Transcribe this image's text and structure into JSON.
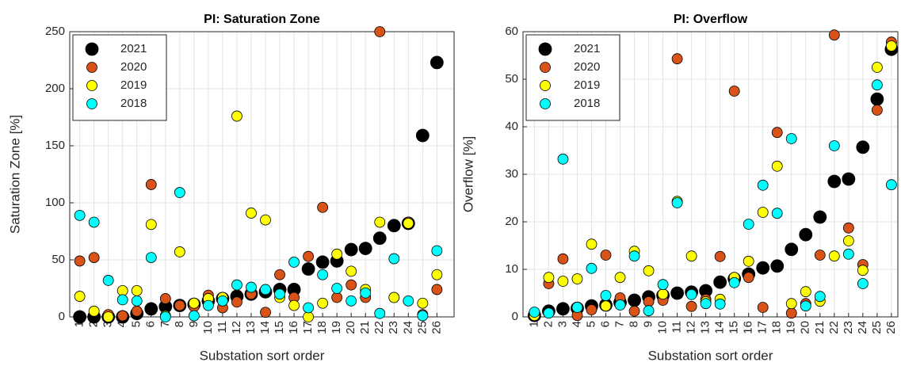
{
  "chart_data": [
    {
      "type": "scatter",
      "title": "PI: Saturation Zone",
      "x_label": "Substation sort order",
      "y_label": "Saturation Zone [%]",
      "x": [
        1,
        2,
        3,
        4,
        5,
        6,
        7,
        8,
        9,
        10,
        11,
        12,
        13,
        14,
        15,
        16,
        17,
        18,
        19,
        20,
        21,
        22,
        23,
        24,
        25,
        26
      ],
      "xlim": [
        0.3,
        27.2
      ],
      "xticks": [
        1,
        2,
        3,
        4,
        5,
        6,
        7,
        8,
        9,
        10,
        11,
        12,
        13,
        14,
        15,
        16,
        17,
        18,
        19,
        20,
        21,
        22,
        23,
        24,
        25,
        26
      ],
      "ylim": [
        0,
        250
      ],
      "yticks": [
        0,
        50,
        100,
        150,
        200,
        250
      ],
      "grid": true,
      "legend": "upper left",
      "series": [
        {
          "name": "2021",
          "color": "#000000",
          "values": [
            0,
            0,
            0,
            0,
            3,
            7,
            9,
            10,
            11,
            14,
            16,
            18,
            20,
            22,
            24,
            24,
            42,
            48,
            49,
            59,
            60,
            69,
            80,
            82,
            159,
            223
          ]
        },
        {
          "name": "2020",
          "color": "#d95319",
          "values": [
            49,
            52,
            2,
            1,
            5,
            116,
            16,
            10,
            9,
            19,
            8,
            13,
            20,
            4,
            37,
            17,
            53,
            96,
            17,
            28,
            17,
            250,
            17,
            83,
            2,
            24
          ]
        },
        {
          "name": "2019",
          "color": "#ffff00",
          "values": [
            18,
            5,
            0,
            23,
            23,
            81,
            1,
            57,
            12,
            16,
            17,
            176,
            91,
            85,
            17,
            10,
            0,
            12,
            55,
            40,
            24,
            83,
            17,
            82,
            12,
            37
          ]
        },
        {
          "name": "2018",
          "color": "#00ffff",
          "values": [
            89,
            83,
            32,
            15,
            14,
            52,
            0,
            109,
            1,
            10,
            14,
            28,
            26,
            24,
            20,
            48,
            8,
            37,
            25,
            14,
            21,
            3,
            51,
            14,
            1,
            58
          ]
        }
      ]
    },
    {
      "type": "scatter",
      "title": "PI: Overflow",
      "x_label": "Substation sort order",
      "y_label": "Overflow [%]",
      "x": [
        1,
        2,
        3,
        4,
        5,
        6,
        7,
        8,
        9,
        10,
        11,
        12,
        13,
        14,
        15,
        16,
        17,
        18,
        19,
        20,
        21,
        22,
        23,
        24,
        25,
        26
      ],
      "xlim": [
        0.2,
        26.45
      ],
      "xticks": [
        1,
        2,
        3,
        4,
        5,
        6,
        7,
        8,
        9,
        10,
        11,
        12,
        13,
        14,
        15,
        16,
        17,
        18,
        19,
        20,
        21,
        22,
        23,
        24,
        25,
        26
      ],
      "ylim": [
        0,
        60
      ],
      "yticks": [
        0,
        10,
        20,
        30,
        40,
        50,
        60
      ],
      "grid": true,
      "legend": "upper left",
      "series": [
        {
          "name": "2021",
          "color": "#000000",
          "values": [
            0.3,
            1.2,
            1.7,
            1.8,
            2.3,
            2.5,
            3,
            3.5,
            4.2,
            4.5,
            5,
            5.2,
            5.5,
            7.3,
            8,
            9,
            10.3,
            10.7,
            14.2,
            17.3,
            21,
            28.5,
            29,
            35.7,
            45.8,
            56.3
          ]
        },
        {
          "name": "2020",
          "color": "#d95319",
          "values": [
            0.5,
            7,
            12.2,
            0.3,
            1.5,
            13,
            4,
            1.2,
            3.2,
            3.5,
            54.3,
            2.2,
            3.7,
            12.7,
            47.5,
            8.3,
            2,
            38.8,
            0.8,
            2.8,
            13,
            59.3,
            18.7,
            11,
            43.5,
            57.8
          ]
        },
        {
          "name": "2019",
          "color": "#ffff00",
          "values": [
            0.3,
            8.3,
            7.5,
            8,
            15.3,
            2.3,
            8.3,
            13.8,
            9.7,
            4.8,
            24.3,
            12.8,
            3.2,
            3.7,
            8.3,
            11.7,
            22,
            31.7,
            2.8,
            5.3,
            3.3,
            12.8,
            16,
            9.8,
            52.5,
            57
          ]
        },
        {
          "name": "2018",
          "color": "#00ffff",
          "values": [
            1,
            0.8,
            33.2,
            2,
            10.2,
            4.5,
            2.5,
            12.8,
            1.3,
            6.8,
            24,
            4.7,
            2.8,
            2.7,
            7.2,
            19.5,
            27.7,
            21.8,
            37.5,
            2.3,
            4.3,
            36,
            13.2,
            7,
            48.8,
            27.8
          ]
        }
      ]
    }
  ]
}
